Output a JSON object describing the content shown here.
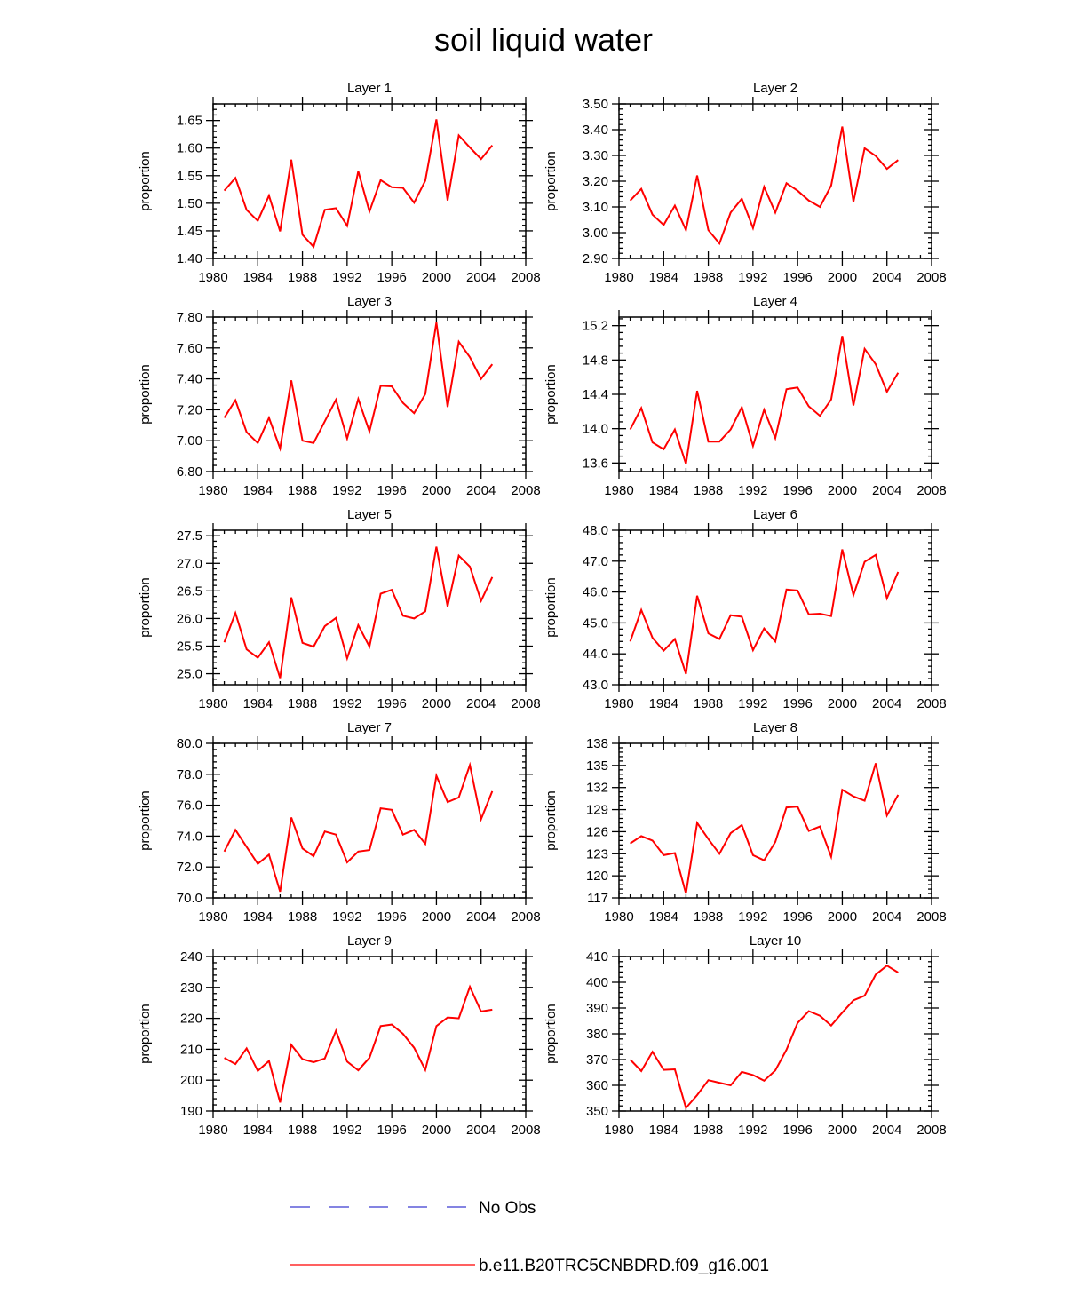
{
  "title": "soil liquid water",
  "legend": {
    "entries": [
      {
        "label": "No Obs",
        "color": "#3b3bd1",
        "style": "dashed"
      },
      {
        "label": "b.e11.B20TRC5CNBDRD.f09_g16.001",
        "color": "#ff0000",
        "style": "solid"
      }
    ]
  },
  "chart_data": [
    {
      "type": "line",
      "title": "Layer 1",
      "xlabel": "",
      "ylabel": "proportion",
      "xlim": [
        1980,
        2008
      ],
      "xticks": [
        "1980",
        "1984",
        "1988",
        "1992",
        "1996",
        "2000",
        "2004",
        "2008"
      ],
      "ylim": [
        1.4,
        1.68
      ],
      "yticks": [
        "1.40",
        "1.45",
        "1.50",
        "1.55",
        "1.60",
        "1.65"
      ],
      "series": [
        {
          "name": "b.e11.B20TRC5CNBDRD.f09_g16.001",
          "color": "#ff0000",
          "x": [
            1981,
            1982,
            1983,
            1984,
            1985,
            1986,
            1987,
            1988,
            1989,
            1990,
            1991,
            1992,
            1993,
            1994,
            1995,
            1996,
            1997,
            1998,
            1999,
            2000,
            2001,
            2002,
            2003,
            2004,
            2005
          ],
          "y": [
            1.523,
            1.546,
            1.488,
            1.468,
            1.514,
            1.449,
            1.579,
            1.443,
            1.421,
            1.488,
            1.491,
            1.459,
            1.558,
            1.485,
            1.542,
            1.529,
            1.528,
            1.501,
            1.541,
            1.652,
            1.505,
            1.623,
            1.601,
            1.58,
            1.605
          ]
        }
      ]
    },
    {
      "type": "line",
      "title": "Layer 2",
      "xlabel": "",
      "ylabel": "proportion",
      "xlim": [
        1980,
        2008
      ],
      "xticks": [
        "1980",
        "1984",
        "1988",
        "1992",
        "1996",
        "2000",
        "2004",
        "2008"
      ],
      "ylim": [
        2.9,
        3.5
      ],
      "yticks": [
        "2.90",
        "3.00",
        "3.10",
        "3.20",
        "3.30",
        "3.40",
        "3.50"
      ],
      "series": [
        {
          "name": "b.e11.B20TRC5CNBDRD.f09_g16.001",
          "color": "#ff0000",
          "x": [
            1981,
            1982,
            1983,
            1984,
            1985,
            1986,
            1987,
            1988,
            1989,
            1990,
            1991,
            1992,
            1993,
            1994,
            1995,
            1996,
            1997,
            1998,
            1999,
            2000,
            2001,
            2002,
            2003,
            2004,
            2005
          ],
          "y": [
            3.125,
            3.17,
            3.07,
            3.03,
            3.105,
            3.01,
            3.222,
            3.01,
            2.958,
            3.078,
            3.132,
            3.018,
            3.178,
            3.078,
            3.192,
            3.163,
            3.125,
            3.1,
            3.183,
            3.412,
            3.12,
            3.328,
            3.298,
            3.248,
            3.282
          ]
        }
      ]
    },
    {
      "type": "line",
      "title": "Layer 3",
      "xlabel": "",
      "ylabel": "proportion",
      "xlim": [
        1980,
        2008
      ],
      "xticks": [
        "1980",
        "1984",
        "1988",
        "1992",
        "1996",
        "2000",
        "2004",
        "2008"
      ],
      "ylim": [
        6.8,
        7.8
      ],
      "yticks": [
        "6.80",
        "7.00",
        "7.20",
        "7.40",
        "7.60",
        "7.80"
      ],
      "series": [
        {
          "name": "b.e11.B20TRC5CNBDRD.f09_g16.001",
          "color": "#ff0000",
          "x": [
            1981,
            1982,
            1983,
            1984,
            1985,
            1986,
            1987,
            1988,
            1989,
            1990,
            1991,
            1992,
            1993,
            1994,
            1995,
            1996,
            1997,
            1998,
            1999,
            2000,
            2001,
            2002,
            2003,
            2004,
            2005
          ],
          "y": [
            7.148,
            7.262,
            7.055,
            6.985,
            7.148,
            6.95,
            7.39,
            7.0,
            6.985,
            7.125,
            7.265,
            7.015,
            7.27,
            7.06,
            7.355,
            7.352,
            7.245,
            7.178,
            7.302,
            7.765,
            7.218,
            7.64,
            7.54,
            7.4,
            7.495
          ]
        }
      ]
    },
    {
      "type": "line",
      "title": "Layer 4",
      "xlabel": "",
      "ylabel": "proportion",
      "xlim": [
        1980,
        2008
      ],
      "xticks": [
        "1980",
        "1984",
        "1988",
        "1992",
        "1996",
        "2000",
        "2004",
        "2008"
      ],
      "ylim": [
        13.5,
        15.3
      ],
      "yticks": [
        "13.6",
        "14.0",
        "14.4",
        "14.8",
        "15.2"
      ],
      "series": [
        {
          "name": "b.e11.B20TRC5CNBDRD.f09_g16.001",
          "color": "#ff0000",
          "x": [
            1981,
            1982,
            1983,
            1984,
            1985,
            1986,
            1987,
            1988,
            1989,
            1990,
            1991,
            1992,
            1993,
            1994,
            1995,
            1996,
            1997,
            1998,
            1999,
            2000,
            2001,
            2002,
            2003,
            2004,
            2005
          ],
          "y": [
            13.99,
            14.24,
            13.84,
            13.76,
            13.99,
            13.59,
            14.44,
            13.85,
            13.85,
            13.99,
            14.25,
            13.8,
            14.22,
            13.89,
            14.46,
            14.48,
            14.26,
            14.15,
            14.34,
            15.08,
            14.27,
            14.93,
            14.75,
            14.43,
            14.65
          ]
        }
      ]
    },
    {
      "type": "line",
      "title": "Layer 5",
      "xlabel": "",
      "ylabel": "proportion",
      "xlim": [
        1980,
        2008
      ],
      "xticks": [
        "1980",
        "1984",
        "1988",
        "1992",
        "1996",
        "2000",
        "2004",
        "2008"
      ],
      "ylim": [
        24.8,
        27.6
      ],
      "yticks": [
        "25.0",
        "25.5",
        "26.0",
        "26.5",
        "27.0",
        "27.5"
      ],
      "series": [
        {
          "name": "b.e11.B20TRC5CNBDRD.f09_g16.001",
          "color": "#ff0000",
          "x": [
            1981,
            1982,
            1983,
            1984,
            1985,
            1986,
            1987,
            1988,
            1989,
            1990,
            1991,
            1992,
            1993,
            1994,
            1995,
            1996,
            1997,
            1998,
            1999,
            2000,
            2001,
            2002,
            2003,
            2004,
            2005
          ],
          "y": [
            25.57,
            26.1,
            25.44,
            25.29,
            25.57,
            24.92,
            26.38,
            25.56,
            25.49,
            25.86,
            26.01,
            25.28,
            25.88,
            25.49,
            26.45,
            26.52,
            26.05,
            26.0,
            26.13,
            27.3,
            26.22,
            27.14,
            26.94,
            26.32,
            26.75
          ]
        }
      ]
    },
    {
      "type": "line",
      "title": "Layer 6",
      "xlabel": "",
      "ylabel": "proportion",
      "xlim": [
        1980,
        2008
      ],
      "xticks": [
        "1980",
        "1984",
        "1988",
        "1992",
        "1996",
        "2000",
        "2004",
        "2008"
      ],
      "ylim": [
        43.0,
        48.0
      ],
      "yticks": [
        "43.0",
        "44.0",
        "45.0",
        "46.0",
        "47.0",
        "48.0"
      ],
      "series": [
        {
          "name": "b.e11.B20TRC5CNBDRD.f09_g16.001",
          "color": "#ff0000",
          "x": [
            1981,
            1982,
            1983,
            1984,
            1985,
            1986,
            1987,
            1988,
            1989,
            1990,
            1991,
            1992,
            1993,
            1994,
            1995,
            1996,
            1997,
            1998,
            1999,
            2000,
            2001,
            2002,
            2003,
            2004,
            2005
          ],
          "y": [
            44.4,
            45.42,
            44.52,
            44.1,
            44.48,
            43.35,
            45.88,
            44.66,
            44.48,
            45.25,
            45.2,
            44.12,
            44.82,
            44.4,
            46.08,
            46.05,
            45.28,
            45.3,
            45.22,
            47.38,
            45.9,
            46.98,
            47.2,
            45.8,
            46.65
          ]
        }
      ]
    },
    {
      "type": "line",
      "title": "Layer 7",
      "xlabel": "",
      "ylabel": "proportion",
      "xlim": [
        1980,
        2008
      ],
      "xticks": [
        "1980",
        "1984",
        "1988",
        "1992",
        "1996",
        "2000",
        "2004",
        "2008"
      ],
      "ylim": [
        70.0,
        80.0
      ],
      "yticks": [
        "70.0",
        "72.0",
        "74.0",
        "76.0",
        "78.0",
        "80.0"
      ],
      "series": [
        {
          "name": "b.e11.B20TRC5CNBDRD.f09_g16.001",
          "color": "#ff0000",
          "x": [
            1981,
            1982,
            1983,
            1984,
            1985,
            1986,
            1987,
            1988,
            1989,
            1990,
            1991,
            1992,
            1993,
            1994,
            1995,
            1996,
            1997,
            1998,
            1999,
            2000,
            2001,
            2002,
            2003,
            2004,
            2005
          ],
          "y": [
            73.0,
            74.4,
            73.3,
            72.2,
            72.8,
            70.4,
            75.2,
            73.2,
            72.7,
            74.3,
            74.1,
            72.3,
            73.0,
            73.1,
            75.8,
            75.7,
            74.1,
            74.4,
            73.5,
            77.9,
            76.2,
            76.5,
            78.6,
            75.1,
            76.9
          ]
        }
      ]
    },
    {
      "type": "line",
      "title": "Layer 8",
      "xlabel": "",
      "ylabel": "proportion",
      "xlim": [
        1980,
        2008
      ],
      "xticks": [
        "1980",
        "1984",
        "1988",
        "1992",
        "1996",
        "2000",
        "2004",
        "2008"
      ],
      "ylim": [
        117,
        138
      ],
      "yticks": [
        "117",
        "120",
        "123",
        "126",
        "129",
        "132",
        "135",
        "138"
      ],
      "series": [
        {
          "name": "b.e11.B20TRC5CNBDRD.f09_g16.001",
          "color": "#ff0000",
          "x": [
            1981,
            1982,
            1983,
            1984,
            1985,
            1986,
            1987,
            1988,
            1989,
            1990,
            1991,
            1992,
            1993,
            1994,
            1995,
            1996,
            1997,
            1998,
            1999,
            2000,
            2001,
            2002,
            2003,
            2004,
            2005
          ],
          "y": [
            124.4,
            125.4,
            124.8,
            122.8,
            123.1,
            117.6,
            127.2,
            125.0,
            123.0,
            125.8,
            126.9,
            122.8,
            122.1,
            124.6,
            129.3,
            129.4,
            126.1,
            126.7,
            122.6,
            131.7,
            130.8,
            130.2,
            135.3,
            128.2,
            131.0
          ]
        }
      ]
    },
    {
      "type": "line",
      "title": "Layer 9",
      "xlabel": "",
      "ylabel": "proportion",
      "xlim": [
        1980,
        2008
      ],
      "xticks": [
        "1980",
        "1984",
        "1988",
        "1992",
        "1996",
        "2000",
        "2004",
        "2008"
      ],
      "ylim": [
        190,
        240
      ],
      "yticks": [
        "190",
        "200",
        "210",
        "220",
        "230",
        "240"
      ],
      "series": [
        {
          "name": "b.e11.B20TRC5CNBDRD.f09_g16.001",
          "color": "#ff0000",
          "x": [
            1981,
            1982,
            1983,
            1984,
            1985,
            1986,
            1987,
            1988,
            1989,
            1990,
            1991,
            1992,
            1993,
            1994,
            1995,
            1996,
            1997,
            1998,
            1999,
            2000,
            2001,
            2002,
            2003,
            2004,
            2005
          ],
          "y": [
            207.2,
            205.2,
            210.3,
            203.0,
            206.2,
            192.8,
            211.4,
            206.8,
            205.8,
            207.0,
            216.0,
            206.0,
            203.2,
            207.2,
            217.5,
            218.0,
            215.0,
            210.5,
            203.3,
            217.5,
            220.3,
            220.0,
            230.2,
            222.2,
            222.8
          ]
        }
      ]
    },
    {
      "type": "line",
      "title": "Layer 10",
      "xlabel": "",
      "ylabel": "proportion",
      "xlim": [
        1980,
        2008
      ],
      "xticks": [
        "1980",
        "1984",
        "1988",
        "1992",
        "1996",
        "2000",
        "2004",
        "2008"
      ],
      "ylim": [
        350,
        410
      ],
      "yticks": [
        "350",
        "360",
        "370",
        "380",
        "390",
        "400",
        "410"
      ],
      "series": [
        {
          "name": "b.e11.B20TRC5CNBDRD.f09_g16.001",
          "color": "#ff0000",
          "x": [
            1981,
            1982,
            1983,
            1984,
            1985,
            1986,
            1987,
            1988,
            1989,
            1990,
            1991,
            1992,
            1993,
            1994,
            1995,
            1996,
            1997,
            1998,
            1999,
            2000,
            2001,
            2002,
            2003,
            2004,
            2005
          ],
          "y": [
            370.0,
            365.5,
            373.0,
            366.0,
            366.2,
            351.2,
            356.2,
            362.0,
            361.0,
            360.0,
            365.2,
            364.0,
            361.8,
            365.8,
            373.8,
            384.2,
            388.8,
            387.0,
            383.2,
            388.2,
            393.0,
            394.8,
            403.0,
            406.5,
            403.8
          ]
        }
      ]
    }
  ]
}
